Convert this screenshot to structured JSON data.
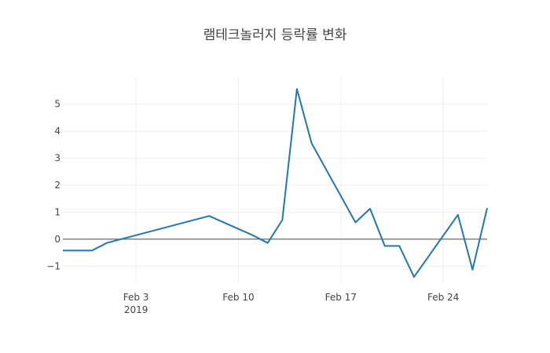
{
  "chart_data": {
    "type": "line",
    "title": "램테크놀러지 등락률 변화",
    "xlabel": "",
    "ylabel": "",
    "x_ticks": [
      {
        "date": "2019-02-03",
        "label": "Feb 3",
        "sublabel": "2019"
      },
      {
        "date": "2019-02-10",
        "label": "Feb 10",
        "sublabel": ""
      },
      {
        "date": "2019-02-17",
        "label": "Feb 17",
        "sublabel": ""
      },
      {
        "date": "2019-02-24",
        "label": "Feb 24",
        "sublabel": ""
      }
    ],
    "y_ticks": [
      {
        "value": -1,
        "label": "−1"
      },
      {
        "value": 0,
        "label": "0"
      },
      {
        "value": 1,
        "label": "1"
      },
      {
        "value": 2,
        "label": "2"
      },
      {
        "value": 3,
        "label": "3"
      },
      {
        "value": 4,
        "label": "4"
      },
      {
        "value": 5,
        "label": "5"
      }
    ],
    "xlim": [
      "2019-01-29",
      "2019-02-27"
    ],
    "ylim": [
      -1.6,
      5.95
    ],
    "grid": true,
    "line_color": "#1f77b4",
    "series": [
      {
        "x": [
          "2019-01-29",
          "2019-01-30",
          "2019-01-31",
          "2019-02-01",
          "2019-02-08",
          "2019-02-11",
          "2019-02-12",
          "2019-02-13",
          "2019-02-14",
          "2019-02-15",
          "2019-02-18",
          "2019-02-19",
          "2019-02-20",
          "2019-02-21",
          "2019-02-22",
          "2019-02-25",
          "2019-02-26",
          "2019-02-27"
        ],
        "values": [
          -0.42,
          -0.42,
          -0.42,
          -0.14,
          0.86,
          0.14,
          -0.14,
          0.71,
          5.56,
          3.55,
          0.62,
          1.13,
          -0.25,
          -0.25,
          -1.4,
          0.9,
          -1.13,
          1.15
        ]
      }
    ]
  }
}
